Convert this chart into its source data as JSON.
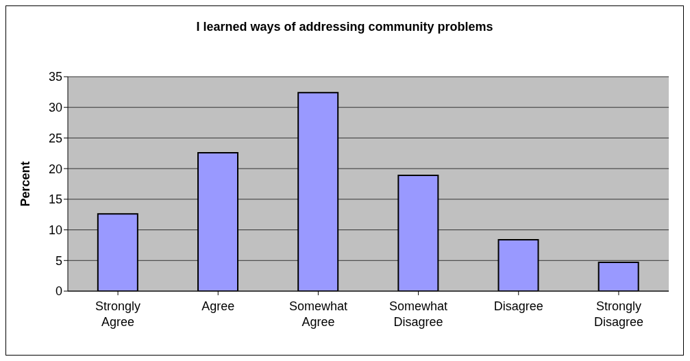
{
  "chart_data": {
    "type": "bar",
    "title": "I learned ways of addressing community problems",
    "ylabel": "Percent",
    "categories": [
      "Strongly Agree",
      "Agree",
      "Somewhat Agree",
      "Somewhat Disagree",
      "Disagree",
      "Strongly Disagree"
    ],
    "values": [
      12.6,
      22.6,
      32.4,
      18.9,
      8.4,
      4.7
    ],
    "color": "#9999ff",
    "ylim": [
      0,
      35
    ],
    "yticks": [
      0,
      5,
      10,
      15,
      20,
      25,
      30,
      35
    ],
    "grid": "y",
    "legend": false
  }
}
